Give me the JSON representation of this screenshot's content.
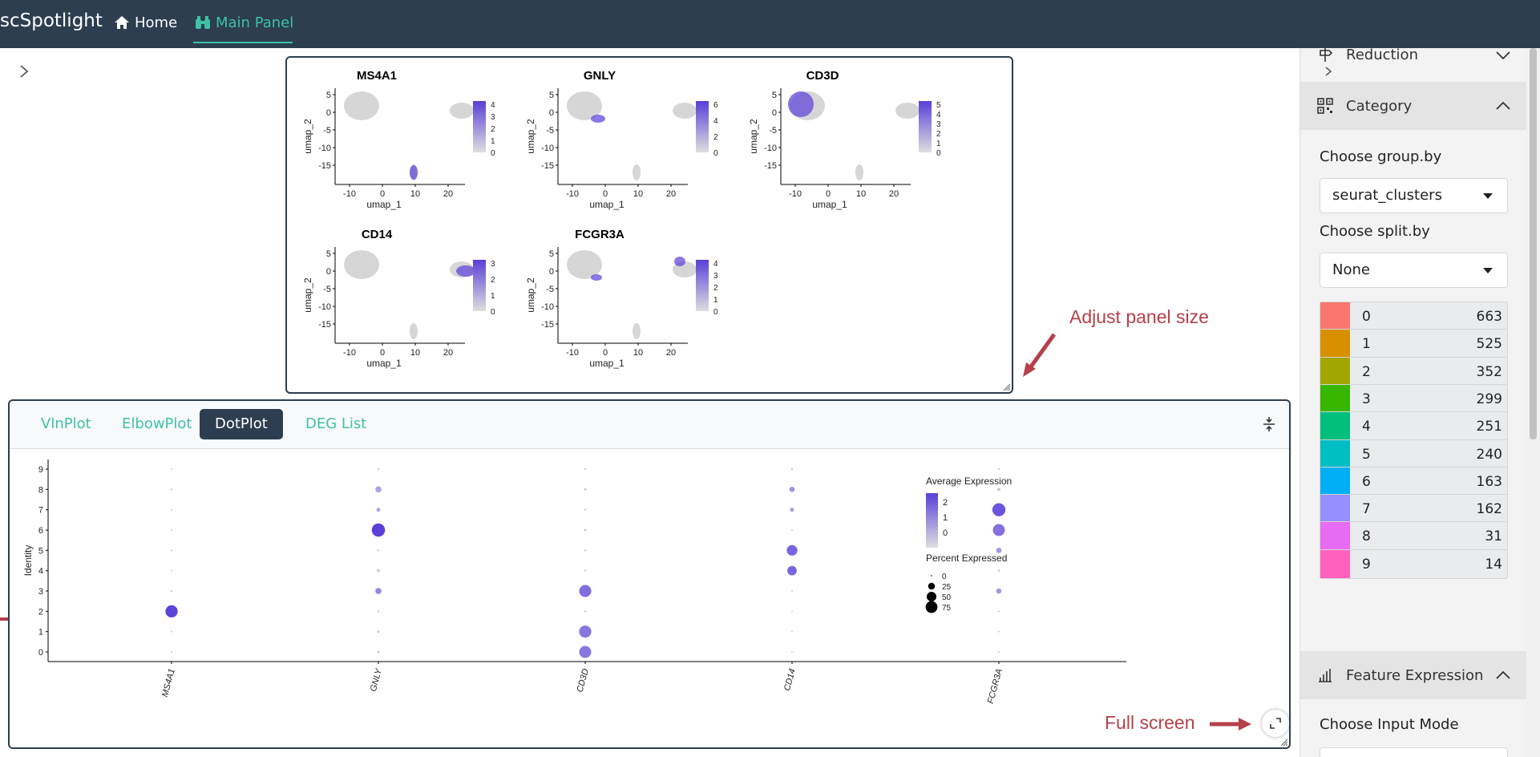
{
  "navbar": {
    "brand": "scSpotlight",
    "home_label": "Home",
    "main_panel_label": "Main Panel"
  },
  "feature_plots": {
    "xlabel": "umap_1",
    "ylabel": "umap_2",
    "x_ticks": [
      "-10",
      "0",
      "10",
      "20"
    ],
    "y_ticks": [
      "5",
      "0",
      "-5",
      "-10",
      "-15"
    ],
    "plots": [
      {
        "title": "MS4A1",
        "legend_ticks": [
          "4",
          "3",
          "2",
          "1",
          "0"
        ]
      },
      {
        "title": "GNLY",
        "legend_ticks": [
          "6",
          "4",
          "2",
          "0"
        ]
      },
      {
        "title": "CD3D",
        "legend_ticks": [
          "5",
          "4",
          "3",
          "2",
          "1",
          "0"
        ]
      },
      {
        "title": "CD14",
        "legend_ticks": [
          "3",
          "2",
          "1",
          "0"
        ]
      },
      {
        "title": "FCGR3A",
        "legend_ticks": [
          "4",
          "3",
          "2",
          "1",
          "0"
        ]
      }
    ]
  },
  "annotations": {
    "adjust_panel": "Adjust panel size",
    "full_screen": "Full screen"
  },
  "tabs": [
    {
      "label": "VlnPlot",
      "active": false
    },
    {
      "label": "ElbowPlot",
      "active": false
    },
    {
      "label": "DotPlot",
      "active": true
    },
    {
      "label": "DEG List",
      "active": false
    }
  ],
  "chart_data": {
    "type": "scatter",
    "title": "",
    "xlabel": "",
    "ylabel": "Identity",
    "categories": [
      "MS4A1",
      "GNLY",
      "CD3D",
      "CD14",
      "FCGR3A"
    ],
    "identities": [
      "0",
      "1",
      "2",
      "3",
      "4",
      "5",
      "6",
      "7",
      "8",
      "9"
    ],
    "legend": {
      "color_title": "Average Expression",
      "color_ticks": [
        "2",
        "1",
        "0"
      ],
      "size_title": "Percent Expressed",
      "size_ticks": [
        "0",
        "25",
        "50",
        "75"
      ],
      "placement": "right"
    },
    "points": [
      {
        "gene": "MS4A1",
        "identity": 2,
        "pct": 80,
        "avg": 2.4
      },
      {
        "gene": "MS4A1",
        "identity": 0,
        "pct": 1,
        "avg": 0
      },
      {
        "gene": "MS4A1",
        "identity": 1,
        "pct": 1,
        "avg": 0
      },
      {
        "gene": "MS4A1",
        "identity": 3,
        "pct": 2,
        "avg": 0
      },
      {
        "gene": "MS4A1",
        "identity": 4,
        "pct": 1,
        "avg": 0
      },
      {
        "gene": "MS4A1",
        "identity": 5,
        "pct": 1,
        "avg": 0
      },
      {
        "gene": "MS4A1",
        "identity": 6,
        "pct": 1,
        "avg": 0
      },
      {
        "gene": "MS4A1",
        "identity": 7,
        "pct": 1,
        "avg": 0
      },
      {
        "gene": "MS4A1",
        "identity": 8,
        "pct": 2,
        "avg": 0
      },
      {
        "gene": "MS4A1",
        "identity": 9,
        "pct": 1,
        "avg": 0
      },
      {
        "gene": "GNLY",
        "identity": 6,
        "pct": 95,
        "avg": 2.5
      },
      {
        "gene": "GNLY",
        "identity": 3,
        "pct": 20,
        "avg": 0.8
      },
      {
        "gene": "GNLY",
        "identity": 8,
        "pct": 20,
        "avg": 0.2
      },
      {
        "gene": "GNLY",
        "identity": 7,
        "pct": 8,
        "avg": 0.2
      },
      {
        "gene": "GNLY",
        "identity": 4,
        "pct": 5,
        "avg": 0
      },
      {
        "gene": "GNLY",
        "identity": 2,
        "pct": 2,
        "avg": 0
      },
      {
        "gene": "GNLY",
        "identity": 1,
        "pct": 3,
        "avg": 0
      },
      {
        "gene": "GNLY",
        "identity": 0,
        "pct": 3,
        "avg": 0
      },
      {
        "gene": "GNLY",
        "identity": 5,
        "pct": 2,
        "avg": 0
      },
      {
        "gene": "GNLY",
        "identity": 9,
        "pct": 2,
        "avg": 0
      },
      {
        "gene": "CD3D",
        "identity": 3,
        "pct": 78,
        "avg": 1.4
      },
      {
        "gene": "CD3D",
        "identity": 1,
        "pct": 80,
        "avg": 1.2
      },
      {
        "gene": "CD3D",
        "identity": 0,
        "pct": 78,
        "avg": 1.2
      },
      {
        "gene": "CD3D",
        "identity": 2,
        "pct": 2,
        "avg": 0
      },
      {
        "gene": "CD3D",
        "identity": 4,
        "pct": 2,
        "avg": 0
      },
      {
        "gene": "CD3D",
        "identity": 5,
        "pct": 2,
        "avg": 0
      },
      {
        "gene": "CD3D",
        "identity": 6,
        "pct": 3,
        "avg": 0
      },
      {
        "gene": "CD3D",
        "identity": 7,
        "pct": 2,
        "avg": 0
      },
      {
        "gene": "CD3D",
        "identity": 8,
        "pct": 3,
        "avg": 0
      },
      {
        "gene": "CD3D",
        "identity": 9,
        "pct": 2,
        "avg": 0
      },
      {
        "gene": "CD14",
        "identity": 5,
        "pct": 60,
        "avg": 1.6
      },
      {
        "gene": "CD14",
        "identity": 4,
        "pct": 48,
        "avg": 1.6
      },
      {
        "gene": "CD14",
        "identity": 8,
        "pct": 15,
        "avg": 0.5
      },
      {
        "gene": "CD14",
        "identity": 7,
        "pct": 8,
        "avg": 0.5
      },
      {
        "gene": "CD14",
        "identity": 0,
        "pct": 1,
        "avg": 0
      },
      {
        "gene": "CD14",
        "identity": 1,
        "pct": 1,
        "avg": 0
      },
      {
        "gene": "CD14",
        "identity": 2,
        "pct": 1,
        "avg": 0
      },
      {
        "gene": "CD14",
        "identity": 3,
        "pct": 1,
        "avg": 0
      },
      {
        "gene": "CD14",
        "identity": 6,
        "pct": 1,
        "avg": 0
      },
      {
        "gene": "CD14",
        "identity": 9,
        "pct": 2,
        "avg": 0
      },
      {
        "gene": "FCGR3A",
        "identity": 7,
        "pct": 92,
        "avg": 2.0
      },
      {
        "gene": "FCGR3A",
        "identity": 6,
        "pct": 78,
        "avg": 1.3
      },
      {
        "gene": "FCGR3A",
        "identity": 5,
        "pct": 15,
        "avg": 0.4
      },
      {
        "gene": "FCGR3A",
        "identity": 3,
        "pct": 15,
        "avg": 0.4
      },
      {
        "gene": "FCGR3A",
        "identity": 8,
        "pct": 5,
        "avg": 0
      },
      {
        "gene": "FCGR3A",
        "identity": 9,
        "pct": 2,
        "avg": 0
      },
      {
        "gene": "FCGR3A",
        "identity": 4,
        "pct": 3,
        "avg": 0
      },
      {
        "gene": "FCGR3A",
        "identity": 2,
        "pct": 1,
        "avg": 0
      },
      {
        "gene": "FCGR3A",
        "identity": 1,
        "pct": 1,
        "avg": 0
      },
      {
        "gene": "FCGR3A",
        "identity": 0,
        "pct": 1,
        "avg": 0
      }
    ],
    "grid": false
  },
  "sidebar": {
    "reduction_label": "Reduction",
    "category_label": "Category",
    "group_by_label": "Choose group.by",
    "group_by_value": "seurat_clusters",
    "split_by_label": "Choose split.by",
    "split_by_value": "None",
    "categories": [
      {
        "name": "0",
        "count": "663",
        "color": "#f8766d"
      },
      {
        "name": "1",
        "count": "525",
        "color": "#d89000"
      },
      {
        "name": "2",
        "count": "352",
        "color": "#a3a500"
      },
      {
        "name": "3",
        "count": "299",
        "color": "#39b600"
      },
      {
        "name": "4",
        "count": "251",
        "color": "#00bf7d"
      },
      {
        "name": "5",
        "count": "240",
        "color": "#00bfc4"
      },
      {
        "name": "6",
        "count": "163",
        "color": "#00b0f6"
      },
      {
        "name": "7",
        "count": "162",
        "color": "#9590ff"
      },
      {
        "name": "8",
        "count": "31",
        "color": "#e76bf3"
      },
      {
        "name": "9",
        "count": "14",
        "color": "#ff62bc"
      }
    ],
    "feature_expression_label": "Feature Expression",
    "input_mode_label": "Choose Input Mode"
  },
  "colors": {
    "navbar": "#2c3e50",
    "accent": "#3fc1a6",
    "expr_high": "#5a3fd8",
    "expr_low": "#dedede",
    "annotation": "#b5404a"
  }
}
